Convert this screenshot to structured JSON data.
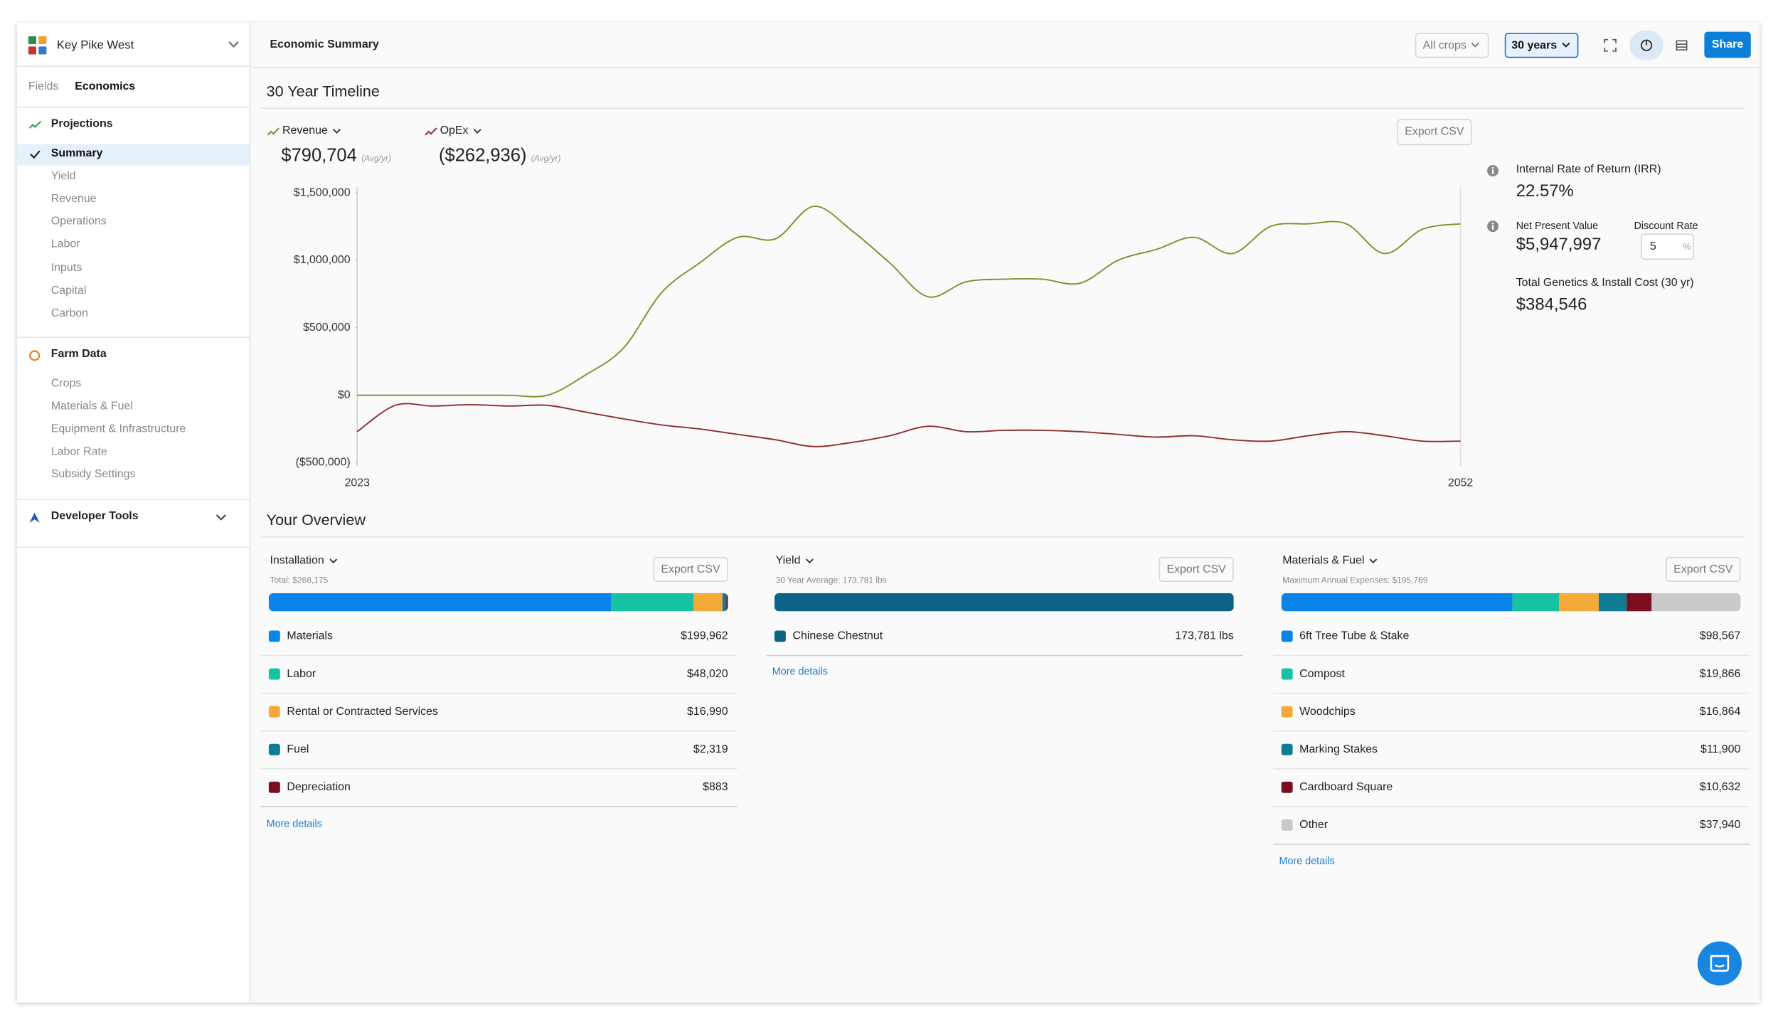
{
  "sidebar": {
    "farm": "Key Pike West",
    "tabs": [
      {
        "label": "Fields"
      },
      {
        "label": "Economics",
        "active": true
      }
    ],
    "sections": [
      {
        "title": "Projections",
        "items": [
          {
            "label": "Summary",
            "selected": true
          },
          {
            "label": "Yield"
          },
          {
            "label": "Revenue"
          },
          {
            "label": "Operations"
          },
          {
            "label": "Labor"
          },
          {
            "label": "Inputs"
          },
          {
            "label": "Capital"
          },
          {
            "label": "Carbon"
          }
        ]
      },
      {
        "title": "Farm Data",
        "items": [
          {
            "label": "Crops"
          },
          {
            "label": "Materials & Fuel"
          },
          {
            "label": "Equipment & Infrastructure"
          },
          {
            "label": "Labor Rate"
          },
          {
            "label": "Subsidy Settings"
          }
        ]
      },
      {
        "title": "Developer Tools"
      }
    ]
  },
  "header": {
    "title": "Economic Summary",
    "crop_filter": "All crops",
    "range": "30 years",
    "share": "Share"
  },
  "timeline": {
    "title": "30 Year Timeline",
    "export": "Export CSV",
    "summary": [
      {
        "value": "$790,704",
        "note": "(Avg/yr)"
      },
      {
        "value": "($262,936)",
        "note": "(Avg/yr)"
      }
    ]
  },
  "chart_data": {
    "type": "line",
    "xlim": [
      2023,
      2052
    ],
    "xticks": [
      2023,
      2052
    ],
    "ylim": [
      -500000,
      1500000
    ],
    "yticks": [
      {
        "value": 1500000,
        "label": "$1,500,000"
      },
      {
        "value": 1000000,
        "label": "$1,000,000"
      },
      {
        "value": 500000,
        "label": "$500,000"
      },
      {
        "value": 0,
        "label": "$0"
      },
      {
        "value": -500000,
        "label": "($500,000)"
      }
    ],
    "grid": false,
    "series": [
      {
        "name": "Revenue",
        "color": "#8c8a2c",
        "values": [
          0,
          0,
          0,
          0,
          0,
          0,
          150000,
          350000,
          760000,
          980000,
          1170000,
          1160000,
          1400000,
          1220000,
          980000,
          730000,
          840000,
          860000,
          860000,
          830000,
          1000000,
          1080000,
          1170000,
          1050000,
          1250000,
          1270000,
          1270000,
          1050000,
          1230000,
          1270000
        ]
      },
      {
        "name": "OpEx",
        "color": "#8e2f33",
        "values": [
          -270000,
          -75000,
          -80000,
          -70000,
          -80000,
          -75000,
          -125000,
          -175000,
          -220000,
          -250000,
          -290000,
          -330000,
          -380000,
          -350000,
          -300000,
          -230000,
          -270000,
          -260000,
          -260000,
          -270000,
          -290000,
          -310000,
          -300000,
          -330000,
          -340000,
          -300000,
          -270000,
          -300000,
          -340000,
          -340000
        ]
      }
    ]
  },
  "metrics": {
    "irr_label": "Internal Rate of Return (IRR)",
    "irr": "22.57%",
    "npv_label": "Net Present Value",
    "npv": "$5,947,997",
    "discount_label": "Discount Rate",
    "discount": "5",
    "discount_unit": "%",
    "cost_label": "Total Genetics & Install Cost (30 yr)",
    "cost": "$384,546"
  },
  "overview": {
    "title": "Your Overview",
    "panels": [
      {
        "title": "Installation",
        "subtitle": "Total: $268,175",
        "export": "Export CSV",
        "more": "More details",
        "labels": [
          "Materials",
          "Labor",
          "Rental or Contracted Services",
          "Fuel",
          "Depreciation"
        ],
        "colors": [
          "#0a84e8",
          "#15c2a2",
          "#f6a93b",
          "#0e7c95",
          "#7b0e1f"
        ],
        "values": [
          199962,
          48020,
          16990,
          2319,
          883
        ],
        "value_labels": [
          "$199,962",
          "$48,020",
          "$16,990",
          "$2,319",
          "$883"
        ]
      },
      {
        "title": "Yield",
        "subtitle": "30 Year Average: 173,781 lbs",
        "export": "Export CSV",
        "more": "More details",
        "labels": [
          "Chinese Chestnut"
        ],
        "colors": [
          "#0b6387"
        ],
        "values": [
          173781
        ],
        "value_labels": [
          "173,781 lbs"
        ]
      },
      {
        "title": "Materials & Fuel",
        "subtitle": "Maximum Annual Expenses: $195,769",
        "export": "Export CSV",
        "more": "More details",
        "labels": [
          "6ft Tree Tube & Stake",
          "Compost",
          "Woodchips",
          "Marking Stakes",
          "Cardboard Square",
          "Other"
        ],
        "colors": [
          "#0a84e8",
          "#15c2a2",
          "#f6a93b",
          "#0e7c95",
          "#7b0e1f",
          "#c9c9c9"
        ],
        "values": [
          98567,
          19866,
          16864,
          11900,
          10632,
          37940
        ],
        "value_labels": [
          "$98,567",
          "$19,866",
          "$16,864",
          "$11,900",
          "$10,632",
          "$37,940"
        ]
      }
    ]
  }
}
